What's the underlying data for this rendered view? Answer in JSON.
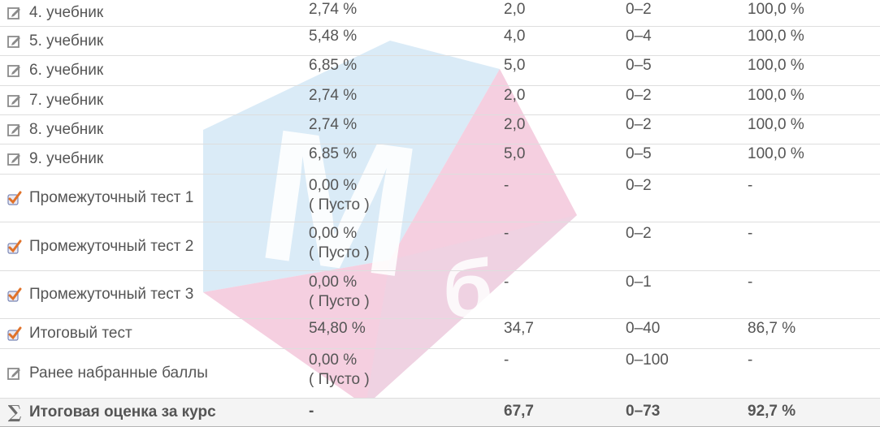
{
  "rows": [
    {
      "name": "4. учебник",
      "icon": "edit-icon",
      "weight": "2,74 %",
      "grade": "2,0",
      "range": "0–2",
      "percent": "100,0 %"
    },
    {
      "name": "5. учебник",
      "icon": "edit-icon",
      "weight": "5,48 %",
      "grade": "4,0",
      "range": "0–4",
      "percent": "100,0 %"
    },
    {
      "name": "6. учебник",
      "icon": "edit-icon",
      "weight": "6,85 %",
      "grade": "5,0",
      "range": "0–5",
      "percent": "100,0 %"
    },
    {
      "name": "7. учебник",
      "icon": "edit-icon",
      "weight": "2,74 %",
      "grade": "2,0",
      "range": "0–2",
      "percent": "100,0 %"
    },
    {
      "name": "8. учебник",
      "icon": "edit-icon",
      "weight": "2,74 %",
      "grade": "2,0",
      "range": "0–2",
      "percent": "100,0 %"
    },
    {
      "name": "9. учебник",
      "icon": "edit-icon",
      "weight": "6,85 %",
      "grade": "5,0",
      "range": "0–5",
      "percent": "100,0 %"
    },
    {
      "name": "Промежуточный тест 1",
      "icon": "quiz-check-icon",
      "weight": "0,00 %",
      "weight_note": "( Пусто )",
      "grade": "-",
      "range": "0–2",
      "percent": "-"
    },
    {
      "name": "Промежуточный тест 2",
      "icon": "quiz-check-icon",
      "weight": "0,00 %",
      "weight_note": "( Пусто )",
      "grade": "-",
      "range": "0–2",
      "percent": "-"
    },
    {
      "name": "Промежуточный тест 3",
      "icon": "quiz-check-icon",
      "weight": "0,00 %",
      "weight_note": "( Пусто )",
      "grade": "-",
      "range": "0–1",
      "percent": "-"
    },
    {
      "name": "Итоговый тест",
      "icon": "quiz-check-icon",
      "weight": "54,80 %",
      "grade": "34,7",
      "range": "0–40",
      "percent": "86,7 %"
    },
    {
      "name": "Ранее набранные баллы",
      "icon": "edit-icon",
      "weight": "0,00 %",
      "weight_note": "( Пусто )",
      "grade": "-",
      "range": "0–100",
      "percent": "-"
    }
  ],
  "total": {
    "name": "Итоговая оценка за курс",
    "icon": "sigma-icon",
    "weight": "-",
    "grade": "67,7",
    "range": "0–73",
    "percent": "92,7 %"
  },
  "watermark": {
    "text": "Мб",
    "colors": [
      "#cfe6f5",
      "#f3c6da"
    ]
  }
}
